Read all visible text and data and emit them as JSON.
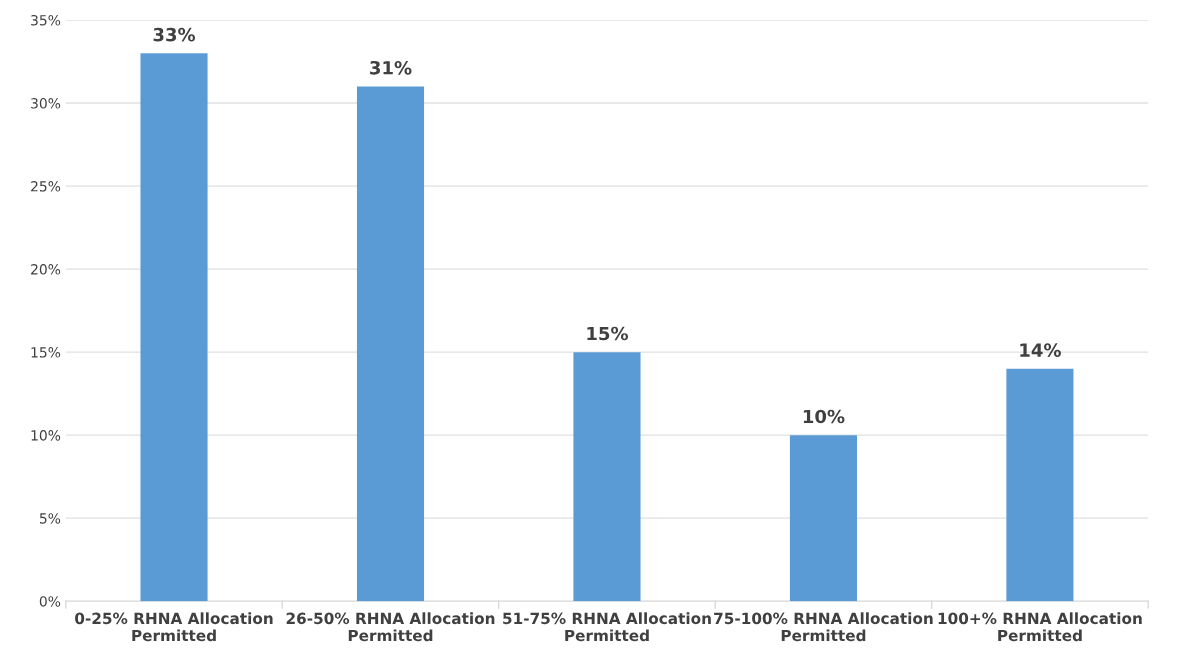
{
  "chart_data": {
    "type": "bar",
    "categories": [
      "0-25% RHNA Allocation Permitted",
      "26-50% RHNA Allocation Permitted",
      "51-75% RHNA Allocation Permitted",
      "75-100% RHNA Allocation Permitted",
      "100+% RHNA Allocation Permitted"
    ],
    "values": [
      33,
      31,
      15,
      10,
      14
    ],
    "value_labels": [
      "33%",
      "31%",
      "15%",
      "10%",
      "14%"
    ],
    "color": "#5b9bd5",
    "ylim": [
      0,
      35
    ],
    "yticks": [
      {
        "value": 0,
        "label": "0%"
      },
      {
        "value": 5,
        "label": "5%"
      },
      {
        "value": 10,
        "label": "10%"
      },
      {
        "value": 15,
        "label": "15%"
      },
      {
        "value": 20,
        "label": "20%"
      },
      {
        "value": 25,
        "label": "25%"
      },
      {
        "value": 30,
        "label": "30%"
      },
      {
        "value": 35,
        "label": "35%"
      }
    ],
    "grid": "y"
  }
}
